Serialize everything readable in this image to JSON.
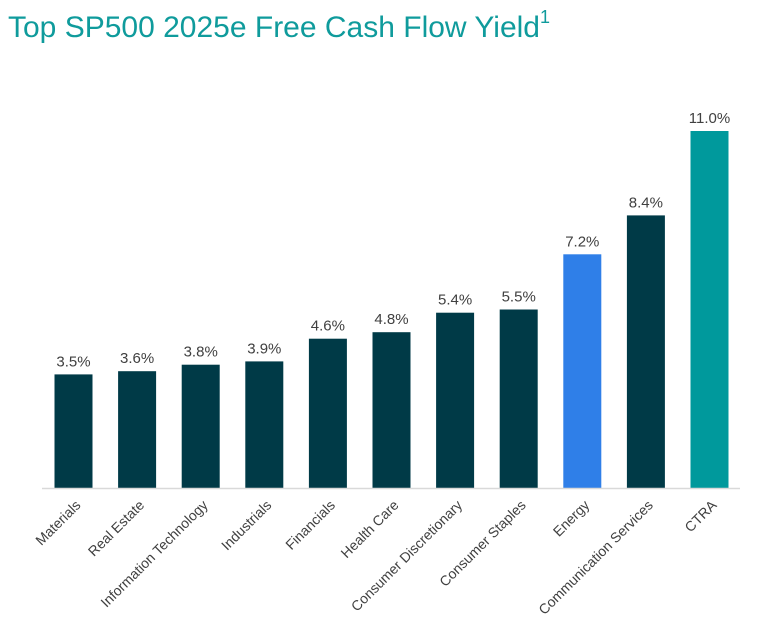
{
  "title": {
    "main": "Top SP500 2025e Free Cash Flow Yield",
    "footnote": "1"
  },
  "colors": {
    "title": "#0f9b9c",
    "default_bar": "#003a47",
    "energy_bar": "#2f7fe8",
    "ctra_bar": "#00999c",
    "baseline": "#d9d9d9",
    "label": "#404040"
  },
  "chart_data": {
    "type": "bar",
    "title": "Top SP500 2025e Free Cash Flow Yield",
    "xlabel": "",
    "ylabel": "",
    "ylim": [
      0,
      11
    ],
    "grid": false,
    "legend": "none",
    "categories": [
      "Materials",
      "Real Estate",
      "Information Technology",
      "Industrials",
      "Financials",
      "Health Care",
      "Consumer Discretionary",
      "Consumer Staples",
      "Energy",
      "Communication Services",
      "CTRA"
    ],
    "values": [
      3.5,
      3.6,
      3.8,
      3.9,
      4.6,
      4.8,
      5.4,
      5.5,
      7.2,
      8.4,
      11.0
    ],
    "value_labels": [
      "3.5%",
      "3.6%",
      "3.8%",
      "3.9%",
      "4.6%",
      "4.8%",
      "5.4%",
      "5.5%",
      "7.2%",
      "8.4%",
      "11.0%"
    ],
    "bar_colors": [
      "#003a47",
      "#003a47",
      "#003a47",
      "#003a47",
      "#003a47",
      "#003a47",
      "#003a47",
      "#003a47",
      "#2f7fe8",
      "#003a47",
      "#00999c"
    ]
  }
}
